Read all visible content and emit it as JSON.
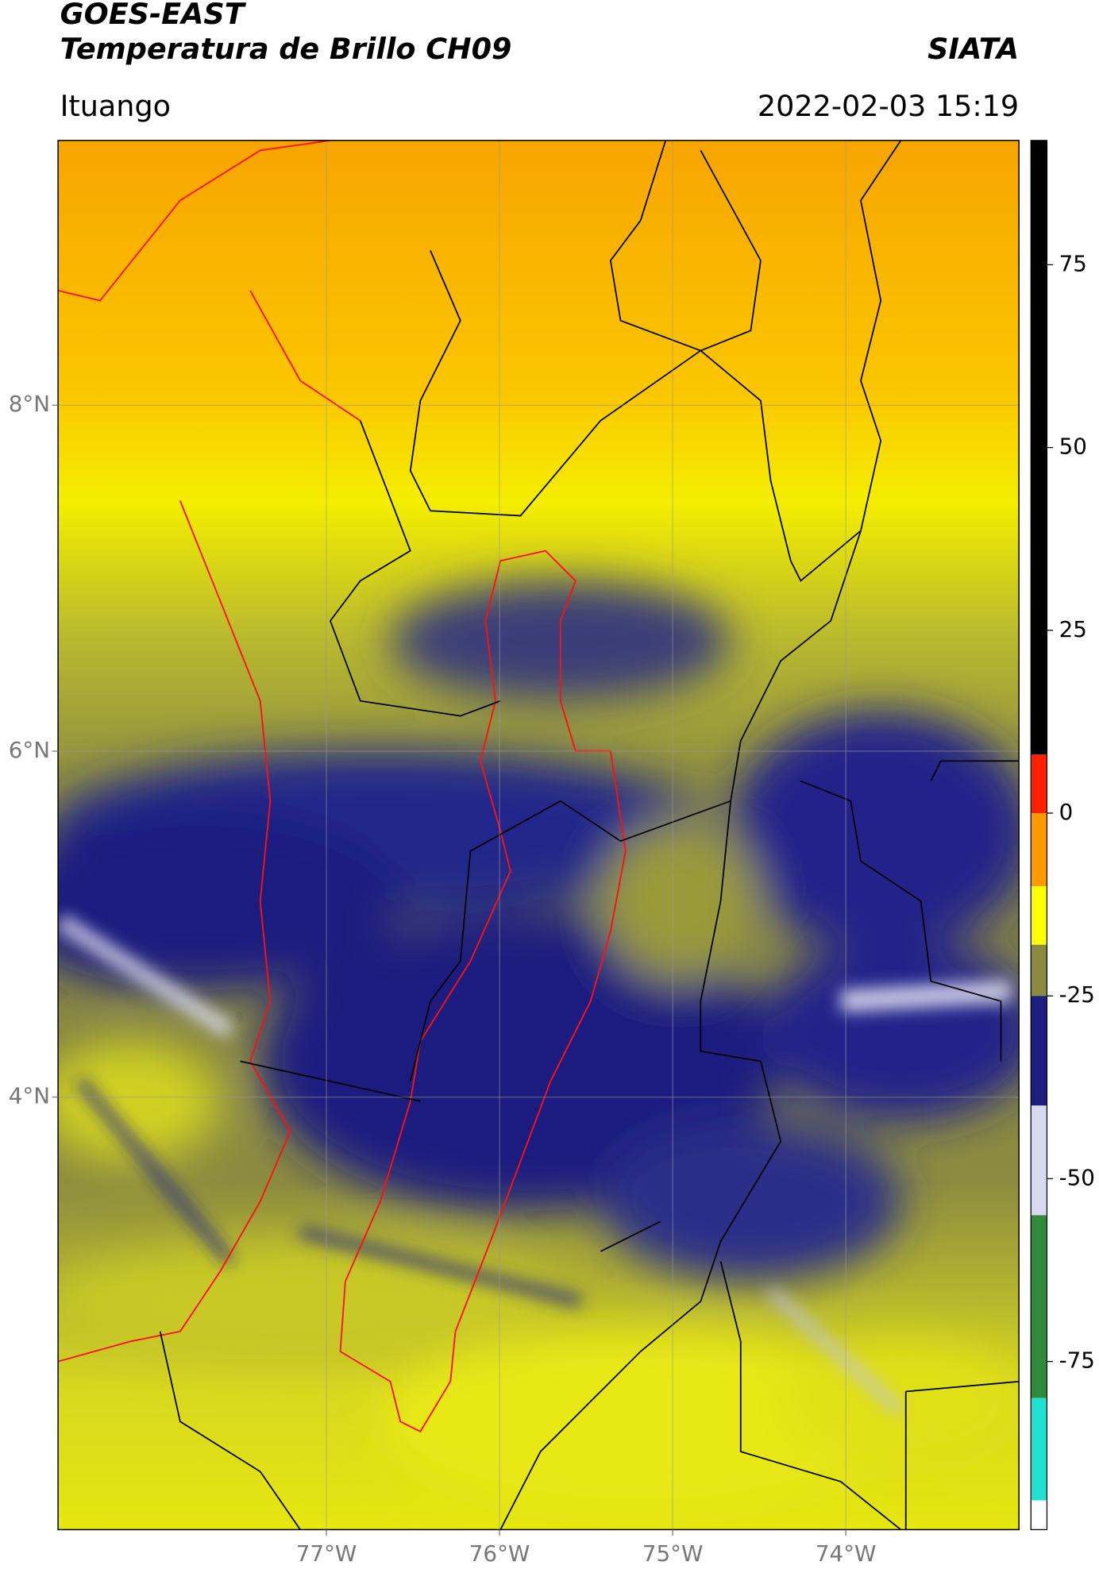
{
  "header": {
    "title": "GOES-EAST",
    "subtitle": "Temperatura de Brillo CH09",
    "source": "SIATA",
    "region": "Ituango",
    "datetime": "2022-02-03 15:19"
  },
  "map": {
    "xlim": [
      -78.55,
      -73.0
    ],
    "ylim": [
      1.5,
      9.53
    ],
    "xticks": [
      {
        "value": -77,
        "label": "77°W"
      },
      {
        "value": -76,
        "label": "76°W"
      },
      {
        "value": -75,
        "label": "75°W"
      },
      {
        "value": -74,
        "label": "74°W"
      }
    ],
    "yticks": [
      {
        "value": 8,
        "label": "8°N"
      },
      {
        "value": 6,
        "label": "6°N"
      },
      {
        "value": 4,
        "label": "4°N"
      }
    ]
  },
  "colorbar": {
    "lim": [
      -98,
      92
    ],
    "ticks": [
      75,
      50,
      25,
      0,
      -25,
      -50,
      -75
    ],
    "segments": [
      {
        "from": 8,
        "to": 92,
        "color": "#000000"
      },
      {
        "from": 0,
        "to": 8,
        "color": "#ff2000"
      },
      {
        "from": -10,
        "to": 0,
        "color": "#ff9a00"
      },
      {
        "from": -18,
        "to": -10,
        "color": "#ffff00"
      },
      {
        "from": -25,
        "to": -18,
        "color": "#8a8a40"
      },
      {
        "from": -40,
        "to": -25,
        "color": "#1c1f80"
      },
      {
        "from": -55,
        "to": -40,
        "color": "#d8d8ee"
      },
      {
        "from": -80,
        "to": -55,
        "color": "#2f8a3a"
      },
      {
        "from": -94,
        "to": -80,
        "color": "#20e0d0"
      },
      {
        "from": -98,
        "to": -94,
        "color": "#ffffff"
      }
    ]
  }
}
